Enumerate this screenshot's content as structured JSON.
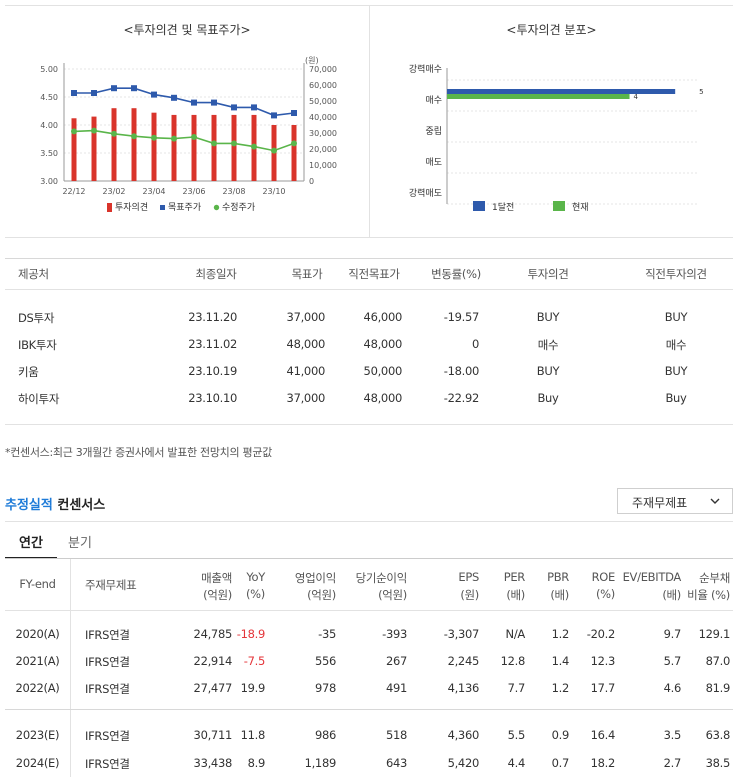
{
  "chart_data": [
    {
      "type": "bar+line",
      "title": "<투자의견 및 목표주가>",
      "categories": [
        "22/12",
        "23/01",
        "23/02",
        "23/03",
        "23/04",
        "23/05",
        "23/06",
        "23/07",
        "23/08",
        "23/09",
        "23/10",
        "23/11"
      ],
      "x_tick_labels": [
        "22/12",
        "23/02",
        "23/04",
        "23/06",
        "23/08",
        "23/10"
      ],
      "left_axis": {
        "ticks": [
          "5.00",
          "4.50",
          "4.00",
          "3.50",
          "3.00"
        ],
        "range": [
          3.0,
          5.0
        ]
      },
      "right_axis": {
        "unit": "(원)",
        "ticks": [
          "70,000",
          "60,000",
          "50,000",
          "40,000",
          "30,000",
          "20,000",
          "10,000",
          "0"
        ],
        "range": [
          0,
          70000
        ]
      },
      "series": [
        {
          "name": "투자의견",
          "kind": "bar",
          "axis": "left",
          "color": "#d9342b",
          "values": [
            4.12,
            4.15,
            4.3,
            4.3,
            4.22,
            4.18,
            4.18,
            4.18,
            4.18,
            4.18,
            4.0,
            4.0
          ]
        },
        {
          "name": "목표주가",
          "kind": "line",
          "axis": "right",
          "color": "#2e5aac",
          "values": [
            55000,
            55000,
            58000,
            58000,
            54000,
            52000,
            49000,
            49000,
            46000,
            46000,
            41000,
            42500
          ]
        },
        {
          "name": "수정주가",
          "kind": "line",
          "axis": "right",
          "color": "#5ab54a",
          "values": [
            31000,
            31500,
            29500,
            28000,
            27000,
            26500,
            27500,
            23500,
            23500,
            21500,
            19000,
            23500
          ]
        }
      ],
      "legend": [
        "투자의견",
        "목표주가",
        "수정주가"
      ]
    },
    {
      "type": "bar",
      "orientation": "horizontal",
      "title": "<투자의견 분포>",
      "categories": [
        "강력매수",
        "매수",
        "중립",
        "매도",
        "강력매도"
      ],
      "series": [
        {
          "name": "1달전",
          "color": "#2e5aac",
          "values": [
            0,
            5,
            0,
            0,
            0
          ]
        },
        {
          "name": "현재",
          "color": "#5ab54a",
          "values": [
            0,
            4,
            0,
            0,
            0
          ]
        }
      ],
      "xlim": [
        0,
        5.5
      ]
    }
  ],
  "opinion_table": {
    "headers": [
      "제공처",
      "최종일자",
      "목표가",
      "직전목표가",
      "변동률(%)",
      "투자의견",
      "직전투자의견"
    ],
    "rows": [
      [
        "DS투자",
        "23.11.20",
        "37,000",
        "46,000",
        "-19.57",
        "BUY",
        "BUY"
      ],
      [
        "IBK투자",
        "23.11.02",
        "48,000",
        "48,000",
        "0",
        "매수",
        "매수"
      ],
      [
        "키움",
        "23.10.19",
        "41,000",
        "50,000",
        "-18.00",
        "BUY",
        "BUY"
      ],
      [
        "하이투자",
        "23.10.10",
        "37,000",
        "48,000",
        "-22.92",
        "Buy",
        "Buy"
      ]
    ]
  },
  "footnote": "*컨센서스:최근 3개월간 증권사에서 발표한 전망치의 평균값",
  "section": {
    "title_accent": "추정실적",
    "title_rest": " 컨센서스",
    "dropdown": "주재무제표",
    "dropdown_icon": "chevron-down"
  },
  "tabs": [
    "연간",
    "분기"
  ],
  "perf_table": {
    "headers": [
      [
        "FY-end",
        ""
      ],
      [
        "주재무제표",
        ""
      ],
      [
        "매출액",
        "(억원)"
      ],
      [
        "YoY",
        "(%)"
      ],
      [
        "영업이익",
        "(억원)"
      ],
      [
        "당기순이익",
        "(억원)"
      ],
      [
        "EPS",
        "(원)"
      ],
      [
        "PER",
        "(배)"
      ],
      [
        "PBR",
        "(배)"
      ],
      [
        "ROE",
        "(%)"
      ],
      [
        "EV/EBITDA",
        "(배)"
      ],
      [
        "순부채",
        "비율 (%)"
      ]
    ],
    "rows": [
      [
        "2020(A)",
        "IFRS연결",
        "24,785",
        "-18.9",
        "-35",
        "-393",
        "-3,307",
        "N/A",
        "1.2",
        "-20.2",
        "9.7",
        "129.1"
      ],
      [
        "2021(A)",
        "IFRS연결",
        "22,914",
        "-7.5",
        "556",
        "267",
        "2,245",
        "12.8",
        "1.4",
        "12.3",
        "5.7",
        "87.0"
      ],
      [
        "2022(A)",
        "IFRS연결",
        "27,477",
        "19.9",
        "978",
        "491",
        "4,136",
        "7.7",
        "1.2",
        "17.7",
        "4.6",
        "81.9"
      ],
      [
        "2023(E)",
        "IFRS연결",
        "30,711",
        "11.8",
        "986",
        "518",
        "4,360",
        "5.5",
        "0.9",
        "16.4",
        "3.5",
        "63.8"
      ],
      [
        "2024(E)",
        "IFRS연결",
        "33,438",
        "8.9",
        "1,189",
        "643",
        "5,420",
        "4.4",
        "0.7",
        "18.2",
        "2.7",
        "38.5"
      ]
    ]
  }
}
